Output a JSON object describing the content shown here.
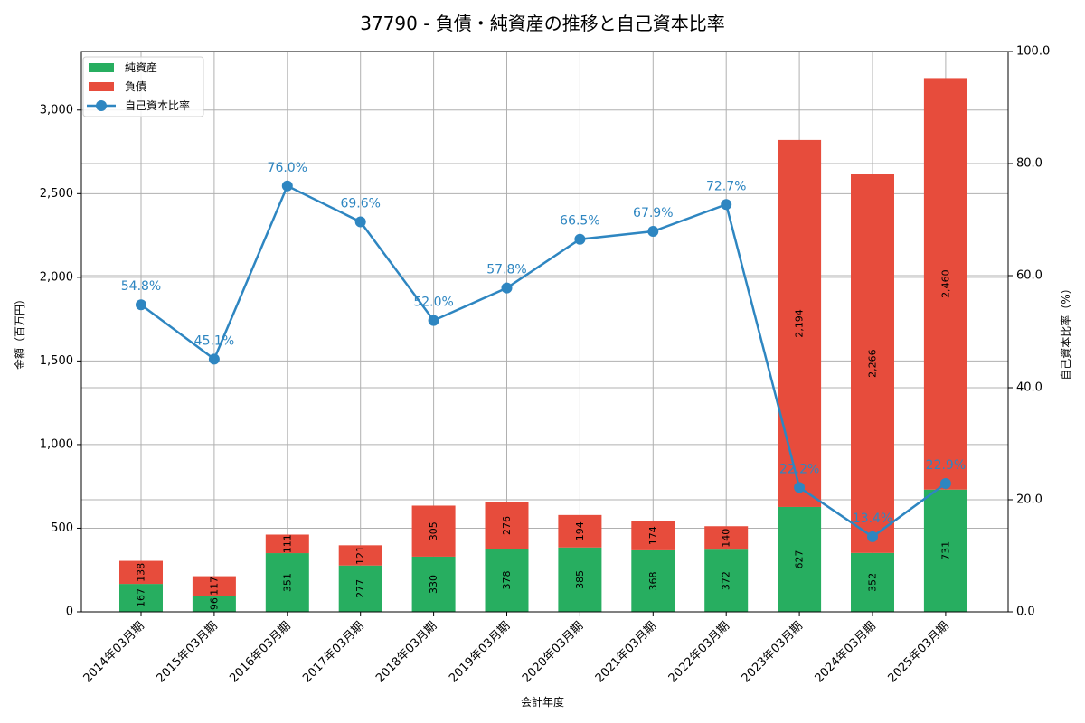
{
  "title": "37790 - 負債・純資産の推移と自己資本比率",
  "colors": {
    "net_assets": "#27ae60",
    "liabilities": "#e74c3c",
    "equity_ratio": "#2e86c1",
    "grid": "#b0b0b0"
  },
  "legend": {
    "items": [
      {
        "label": "純資産",
        "type": "bar",
        "color": "#27ae60"
      },
      {
        "label": "負債",
        "type": "bar",
        "color": "#e74c3c"
      },
      {
        "label": "自己資本比率",
        "type": "line",
        "color": "#2e86c1"
      }
    ]
  },
  "chart_data": {
    "type": "bar",
    "title": "37790 - 負債・純資産の推移と自己資本比率",
    "xlabel": "会計年度",
    "ylabel": "金額（百万円）",
    "y2label": "自己資本比率（%）",
    "ylim": [
      0,
      3350
    ],
    "y2lim": [
      0,
      100
    ],
    "yticks": [
      0,
      500,
      1000,
      1500,
      2000,
      2500,
      3000
    ],
    "ytick_labels": [
      "0",
      "500",
      "1,000",
      "1,500",
      "2,000",
      "2,500",
      "3,000"
    ],
    "y2ticks": [
      0,
      20,
      40,
      60,
      80,
      100
    ],
    "y2tick_labels": [
      "0.0",
      "20.0",
      "40.0",
      "60.0",
      "80.0",
      "100.0"
    ],
    "grid": true,
    "legend_position": "upper left",
    "stacked": true,
    "categories": [
      "2014年03月期",
      "2015年03月期",
      "2016年03月期",
      "2017年03月期",
      "2018年03月期",
      "2019年03月期",
      "2020年03月期",
      "2021年03月期",
      "2022年03月期",
      "2023年03月期",
      "2024年03月期",
      "2025年03月期"
    ],
    "series": [
      {
        "name": "純資産",
        "type": "bar",
        "axis": "left",
        "values": [
          167,
          96,
          351,
          277,
          330,
          378,
          385,
          368,
          372,
          627,
          352,
          731
        ],
        "labels": [
          "167",
          "96",
          "351",
          "277",
          "330",
          "378",
          "385",
          "368",
          "372",
          "627",
          "352",
          "731"
        ]
      },
      {
        "name": "負債",
        "type": "bar",
        "axis": "left",
        "values": [
          138,
          117,
          111,
          121,
          305,
          276,
          194,
          174,
          140,
          2194,
          2266,
          2460
        ],
        "labels": [
          "138",
          "117",
          "111",
          "121",
          "305",
          "276",
          "194",
          "174",
          "140",
          "2,194",
          "2,266",
          "2,460"
        ]
      },
      {
        "name": "自己資本比率",
        "type": "line",
        "axis": "right",
        "values": [
          54.8,
          45.1,
          76.0,
          69.6,
          52.0,
          57.8,
          66.5,
          67.9,
          72.7,
          22.2,
          13.4,
          22.9
        ],
        "labels": [
          "54.8%",
          "45.1%",
          "76.0%",
          "69.6%",
          "52.0%",
          "57.8%",
          "66.5%",
          "67.9%",
          "72.7%",
          "22.2%",
          "13.4%",
          "22.9%"
        ]
      }
    ]
  }
}
